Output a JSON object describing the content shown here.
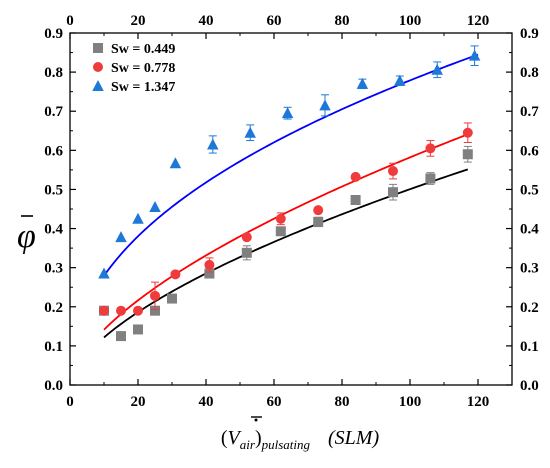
{
  "chart_data": {
    "type": "scatter",
    "x_ticks": [
      "0",
      "20",
      "40",
      "60",
      "80",
      "100",
      "120"
    ],
    "y_ticks": [
      "0.0",
      "0.1",
      "0.2",
      "0.3",
      "0.4",
      "0.5",
      "0.6",
      "0.7",
      "0.8",
      "0.9"
    ],
    "xlim": [
      0,
      130
    ],
    "ylim": [
      0,
      0.9
    ],
    "ylabel": "φ",
    "xlabel": {
      "paren_open": "(",
      "V": "V",
      "air": "air",
      "paren_close": ")",
      "pulsating": "pulsating",
      "unit": "(SLM)"
    },
    "grid": false,
    "legend_position": "top-left",
    "series": [
      {
        "name": "Sw = 0.449",
        "marker": "square",
        "color": "#808080",
        "fit_color": "#000000",
        "x": [
          10,
          15,
          20,
          25,
          30,
          41,
          52,
          62,
          73,
          84,
          95,
          106,
          117
        ],
        "y": [
          0.19,
          0.125,
          0.142,
          0.19,
          0.221,
          0.285,
          0.338,
          0.393,
          0.417,
          0.473,
          0.493,
          0.528,
          0.59
        ],
        "err": [
          0,
          0,
          0,
          0,
          0,
          0,
          0.018,
          0,
          0.012,
          0,
          0.02,
          0.015,
          0.02
        ],
        "fit": {
          "a": 0.02955,
          "b": 0.6145,
          "x_range": [
            10,
            117
          ]
        }
      },
      {
        "name": "Sw = 0.778",
        "marker": "circle",
        "color": "#ef3b3b",
        "fit_color": "#ff0000",
        "x": [
          10,
          15,
          20,
          25,
          31,
          41,
          52,
          62,
          73,
          84,
          95,
          106,
          117
        ],
        "y": [
          0.19,
          0.19,
          0.19,
          0.228,
          0.283,
          0.307,
          0.378,
          0.425,
          0.447,
          0.532,
          0.547,
          0.605,
          0.645
        ],
        "err": [
          0,
          0,
          0,
          0.035,
          0,
          0.018,
          0,
          0.015,
          0,
          0,
          0.02,
          0.02,
          0.025
        ],
        "fit": {
          "a": 0.0343,
          "b": 0.6148,
          "x_range": [
            10,
            117
          ]
        }
      },
      {
        "name": "Sw = 1.347",
        "marker": "triangle",
        "color": "#1e78d8",
        "fit_color": "#0000ff",
        "x": [
          10,
          15,
          20,
          25,
          31,
          42,
          53,
          64,
          75,
          86,
          97,
          108,
          119
        ],
        "y": [
          0.285,
          0.378,
          0.425,
          0.455,
          0.567,
          0.615,
          0.645,
          0.695,
          0.715,
          0.77,
          0.778,
          0.806,
          0.842
        ],
        "err": [
          0,
          0,
          0,
          0,
          0,
          0.022,
          0.02,
          0.015,
          0.027,
          0.012,
          0.012,
          0.02,
          0.025
        ],
        "fit": {
          "a": 0.1001,
          "b": 0.4455,
          "x_range": [
            10,
            120
          ]
        }
      }
    ]
  }
}
